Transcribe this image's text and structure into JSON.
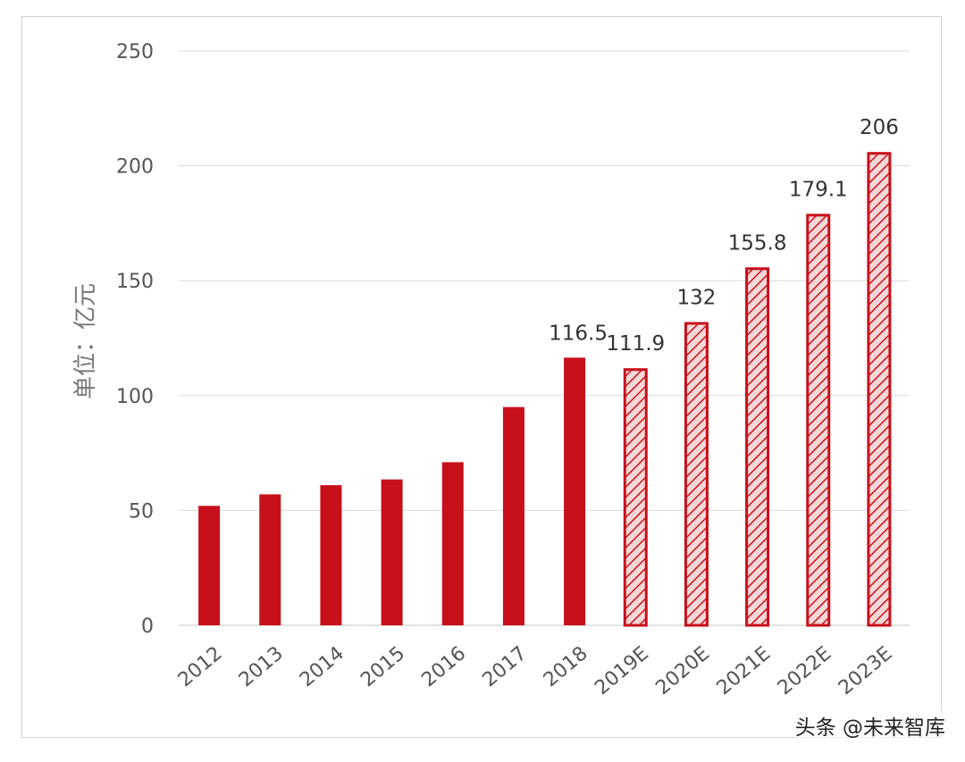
{
  "chart_data": {
    "type": "bar",
    "ylabel": "单位：亿元",
    "ylim": [
      0,
      250
    ],
    "yticks": [
      0,
      50,
      100,
      150,
      200,
      250
    ],
    "grid": true,
    "categories": [
      "2012",
      "2013",
      "2014",
      "2015",
      "2016",
      "2017",
      "2018",
      "2019E",
      "2020E",
      "2021E",
      "2022E",
      "2023E"
    ],
    "values": [
      52,
      57,
      61,
      63.5,
      71,
      95,
      116.5,
      111.9,
      132,
      155.8,
      179.1,
      206
    ],
    "data_labels": [
      "",
      "",
      "",
      "",
      "",
      "",
      "116.5",
      "111.9",
      "132",
      "155.8",
      "179.1",
      "206"
    ],
    "forecast_start_index": 7,
    "colors": {
      "actual": "#c8101b",
      "forecast_stroke": "#c8101b",
      "forecast_fill": "#f6d7d7",
      "grid": "#d9d9d9"
    }
  },
  "watermark": "头条 @未来智库"
}
